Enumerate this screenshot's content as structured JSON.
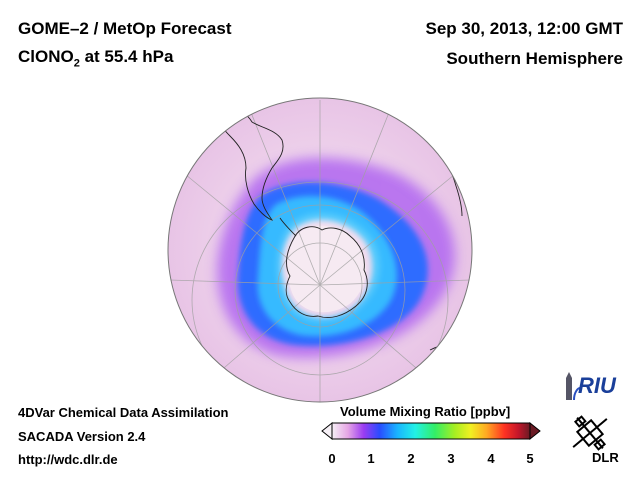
{
  "header": {
    "title_line1": "GOME–2 / MetOp Forecast",
    "title_line2_prefix": "ClONO",
    "title_line2_sub": "2",
    "title_line2_suffix": " at 55.4 hPa",
    "date": "Sep 30, 2013, 12:00 GMT",
    "region": "Southern Hemisphere"
  },
  "footer": {
    "line1": "4DVar Chemical Data Assimilation",
    "line2": "SACADA Version 2.4",
    "line3": "http://wdc.dlr.de"
  },
  "colorbar": {
    "title": "Volume Mixing Ratio [ppbv]",
    "ticks": [
      "0",
      "1",
      "2",
      "3",
      "4",
      "5"
    ],
    "colors": [
      "#f6f0f6",
      "#e6a6e6",
      "#9a3cf2",
      "#2a4cff",
      "#19b4ff",
      "#22f0e6",
      "#33ee66",
      "#a6ee22",
      "#f0f022",
      "#ffaa22",
      "#ff3322",
      "#c4162a",
      "#6a1a24"
    ]
  },
  "logos": {
    "riu": "RIU",
    "dlr": "DLR"
  },
  "map": {
    "projection": "orthographic, Southern Hemisphere",
    "background_color": "#f0d6ee",
    "field_colors": {
      "low": "#f6eaf4",
      "mid": "#b86ef2",
      "high": "#2d7cff",
      "peak": "#3fe0f6"
    }
  }
}
